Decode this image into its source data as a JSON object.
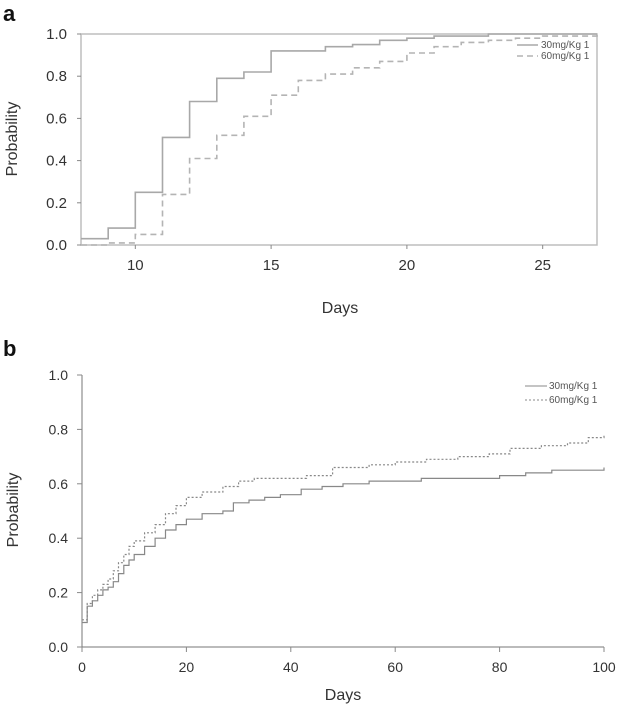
{
  "chart_data": [
    {
      "panel": "a",
      "type": "line",
      "step": true,
      "title": "",
      "xlabel": "Days",
      "ylabel": "Probability",
      "xlim": [
        8,
        27
      ],
      "ylim": [
        0,
        1.0
      ],
      "xticks": [
        10,
        15,
        20,
        25
      ],
      "yticks": [
        0.0,
        0.2,
        0.4,
        0.6,
        0.8,
        1.0
      ],
      "xtick_labels": [
        "10",
        "15",
        "20",
        "25"
      ],
      "ytick_labels": [
        "0.0",
        "0.2",
        "0.4",
        "0.6",
        "0.8",
        "1.0"
      ],
      "grid": false,
      "legend_position": "top-right",
      "series": [
        {
          "name": "30mg/Kg 1",
          "style": "solid",
          "color": "#a8a8a8",
          "x": [
            8,
            9,
            10,
            11,
            12,
            13,
            14,
            15,
            16,
            17,
            18,
            19,
            20,
            21,
            22,
            23,
            24,
            25,
            26,
            27
          ],
          "y": [
            0.03,
            0.08,
            0.25,
            0.51,
            0.68,
            0.79,
            0.82,
            0.92,
            0.92,
            0.94,
            0.95,
            0.97,
            0.98,
            0.99,
            0.99,
            1.0,
            1.0,
            1.0,
            1.0,
            1.0
          ]
        },
        {
          "name": "60mg/Kg 1",
          "style": "dashed",
          "color": "#b4b4b4",
          "x": [
            8,
            9,
            10,
            11,
            12,
            13,
            14,
            15,
            16,
            17,
            18,
            19,
            20,
            21,
            22,
            23,
            24,
            25,
            26,
            27
          ],
          "y": [
            0.0,
            0.01,
            0.05,
            0.24,
            0.41,
            0.52,
            0.61,
            0.71,
            0.78,
            0.81,
            0.84,
            0.87,
            0.91,
            0.94,
            0.96,
            0.97,
            0.98,
            0.99,
            0.99,
            1.0
          ]
        }
      ]
    },
    {
      "panel": "b",
      "type": "line",
      "step": true,
      "title": "",
      "xlabel": "Days",
      "ylabel": "Probability",
      "xlim": [
        0,
        100
      ],
      "ylim": [
        0,
        1.0
      ],
      "xticks": [
        0,
        20,
        40,
        60,
        80,
        100
      ],
      "yticks": [
        0.0,
        0.2,
        0.4,
        0.6,
        0.8,
        1.0
      ],
      "xtick_labels": [
        "0",
        "20",
        "40",
        "60",
        "80",
        "100"
      ],
      "ytick_labels": [
        "0.0",
        "0.2",
        "0.4",
        "0.6",
        "0.8",
        "1.0"
      ],
      "grid": false,
      "legend_position": "top-right",
      "series": [
        {
          "name": "30mg/Kg 1",
          "style": "solid",
          "color": "#888888",
          "x": [
            0,
            1,
            2,
            3,
            4,
            5,
            6,
            7,
            8,
            9,
            10,
            12,
            14,
            16,
            18,
            20,
            23,
            27,
            29,
            32,
            35,
            38,
            42,
            46,
            50,
            55,
            60,
            65,
            70,
            75,
            80,
            85,
            90,
            95,
            100
          ],
          "y": [
            0.09,
            0.15,
            0.17,
            0.19,
            0.21,
            0.22,
            0.24,
            0.27,
            0.3,
            0.32,
            0.34,
            0.37,
            0.4,
            0.43,
            0.45,
            0.47,
            0.49,
            0.5,
            0.53,
            0.54,
            0.55,
            0.56,
            0.58,
            0.59,
            0.6,
            0.61,
            0.61,
            0.62,
            0.62,
            0.62,
            0.63,
            0.64,
            0.65,
            0.65,
            0.66
          ]
        },
        {
          "name": "60mg/Kg 1",
          "style": "dotted",
          "color": "#888888",
          "x": [
            0,
            1,
            2,
            3,
            4,
            5,
            6,
            7,
            8,
            9,
            10,
            12,
            14,
            16,
            18,
            20,
            23,
            27,
            30,
            33,
            38,
            43,
            48,
            55,
            60,
            66,
            72,
            78,
            82,
            88,
            93,
            97,
            100
          ],
          "y": [
            0.1,
            0.16,
            0.19,
            0.21,
            0.23,
            0.25,
            0.28,
            0.31,
            0.34,
            0.37,
            0.39,
            0.42,
            0.45,
            0.49,
            0.52,
            0.55,
            0.57,
            0.59,
            0.61,
            0.62,
            0.62,
            0.63,
            0.66,
            0.67,
            0.68,
            0.69,
            0.7,
            0.71,
            0.73,
            0.74,
            0.75,
            0.77,
            0.78
          ]
        }
      ]
    }
  ]
}
